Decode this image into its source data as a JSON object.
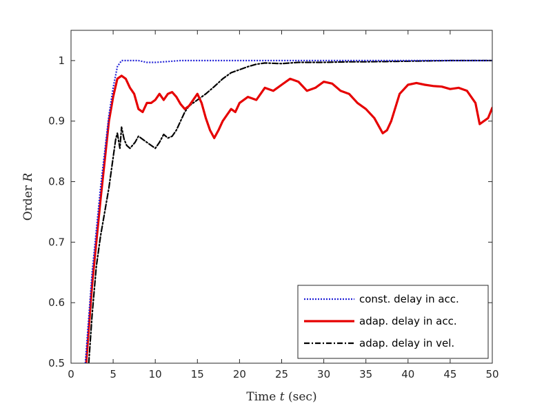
{
  "chart_data": {
    "type": "line",
    "title": "",
    "xlabel_prefix": "Time ",
    "xlabel_var": "t",
    "xlabel_suffix": " (sec)",
    "ylabel_prefix": "Order ",
    "ylabel_var": "R",
    "xlim": [
      0,
      50
    ],
    "ylim": [
      0.5,
      1.05
    ],
    "xticks": [
      0,
      5,
      10,
      15,
      20,
      25,
      30,
      35,
      40,
      45,
      50
    ],
    "yticks": [
      0.5,
      0.6,
      0.7,
      0.8,
      0.9,
      1.0
    ],
    "ytick_labels": [
      "0.5",
      "0.6",
      "0.7",
      "0.8",
      "0.9",
      "1"
    ],
    "grid": false,
    "legend_position": "bottom-right",
    "series": [
      {
        "name": "const. delay in acc.",
        "color": "#1f1fd6",
        "style": "dotted",
        "x": [
          1.7,
          2.5,
          3.5,
          4.5,
          5.0,
          5.5,
          6.0,
          7.0,
          8.0,
          9.0,
          10.0,
          11.0,
          12.0,
          13.0,
          15.0,
          20.0,
          25.0,
          30.0,
          35.0,
          40.0,
          45.0,
          50.0
        ],
        "y": [
          0.5,
          0.65,
          0.79,
          0.91,
          0.955,
          0.99,
          1.0,
          1.0,
          1.0,
          0.997,
          0.997,
          0.998,
          0.999,
          1.0,
          1.0,
          1.0,
          1.0,
          1.0,
          1.0,
          1.0,
          1.0,
          1.0
        ]
      },
      {
        "name": "adap. delay in acc.",
        "color": "#e60000",
        "style": "solid",
        "x": [
          1.8,
          2.5,
          3.5,
          4.5,
          5.0,
          5.5,
          6.0,
          6.5,
          7.0,
          7.5,
          8.0,
          8.5,
          9.0,
          9.5,
          10.0,
          10.5,
          11.0,
          11.5,
          12.0,
          12.5,
          13.0,
          13.5,
          14.0,
          14.5,
          15.0,
          15.5,
          16.0,
          16.5,
          17.0,
          17.5,
          18.0,
          18.5,
          19.0,
          19.5,
          20.0,
          21.0,
          22.0,
          23.0,
          24.0,
          25.0,
          26.0,
          27.0,
          28.0,
          29.0,
          30.0,
          31.0,
          32.0,
          33.0,
          34.0,
          35.0,
          36.0,
          37.0,
          37.5,
          38.0,
          39.0,
          40.0,
          41.0,
          42.0,
          43.0,
          44.0,
          45.0,
          46.0,
          47.0,
          48.0,
          48.5,
          49.0,
          49.5,
          50.0
        ],
        "y": [
          0.5,
          0.63,
          0.77,
          0.9,
          0.94,
          0.97,
          0.975,
          0.97,
          0.955,
          0.945,
          0.92,
          0.915,
          0.93,
          0.93,
          0.935,
          0.945,
          0.935,
          0.945,
          0.948,
          0.94,
          0.928,
          0.92,
          0.925,
          0.935,
          0.945,
          0.93,
          0.905,
          0.885,
          0.872,
          0.885,
          0.9,
          0.91,
          0.92,
          0.915,
          0.93,
          0.94,
          0.935,
          0.955,
          0.95,
          0.96,
          0.97,
          0.965,
          0.95,
          0.955,
          0.965,
          0.962,
          0.95,
          0.945,
          0.93,
          0.92,
          0.905,
          0.88,
          0.885,
          0.9,
          0.945,
          0.96,
          0.963,
          0.96,
          0.958,
          0.957,
          0.953,
          0.955,
          0.95,
          0.93,
          0.895,
          0.9,
          0.905,
          0.922
        ]
      },
      {
        "name": "adap. delay in vel.",
        "color": "#000000",
        "style": "dashdot",
        "x": [
          2.1,
          2.5,
          3.0,
          3.5,
          4.0,
          4.5,
          5.0,
          5.3,
          5.5,
          5.8,
          6.0,
          6.3,
          6.6,
          7.0,
          7.3,
          7.6,
          8.0,
          8.5,
          9.0,
          9.5,
          10.0,
          10.5,
          11.0,
          11.5,
          12.0,
          12.5,
          13.0,
          13.5,
          14.0,
          15.0,
          16.0,
          17.0,
          18.0,
          19.0,
          20.0,
          21.0,
          22.0,
          23.0,
          25.0,
          27.0,
          30.0,
          33.0,
          35.0,
          40.0,
          45.0,
          50.0
        ],
        "y": [
          0.5,
          0.58,
          0.66,
          0.71,
          0.75,
          0.79,
          0.84,
          0.87,
          0.88,
          0.855,
          0.89,
          0.87,
          0.86,
          0.855,
          0.86,
          0.865,
          0.875,
          0.87,
          0.865,
          0.86,
          0.855,
          0.865,
          0.878,
          0.872,
          0.875,
          0.885,
          0.9,
          0.915,
          0.925,
          0.935,
          0.945,
          0.957,
          0.97,
          0.98,
          0.985,
          0.99,
          0.994,
          0.996,
          0.995,
          0.997,
          0.997,
          0.998,
          0.998,
          0.999,
          1.0,
          1.0
        ]
      }
    ]
  }
}
